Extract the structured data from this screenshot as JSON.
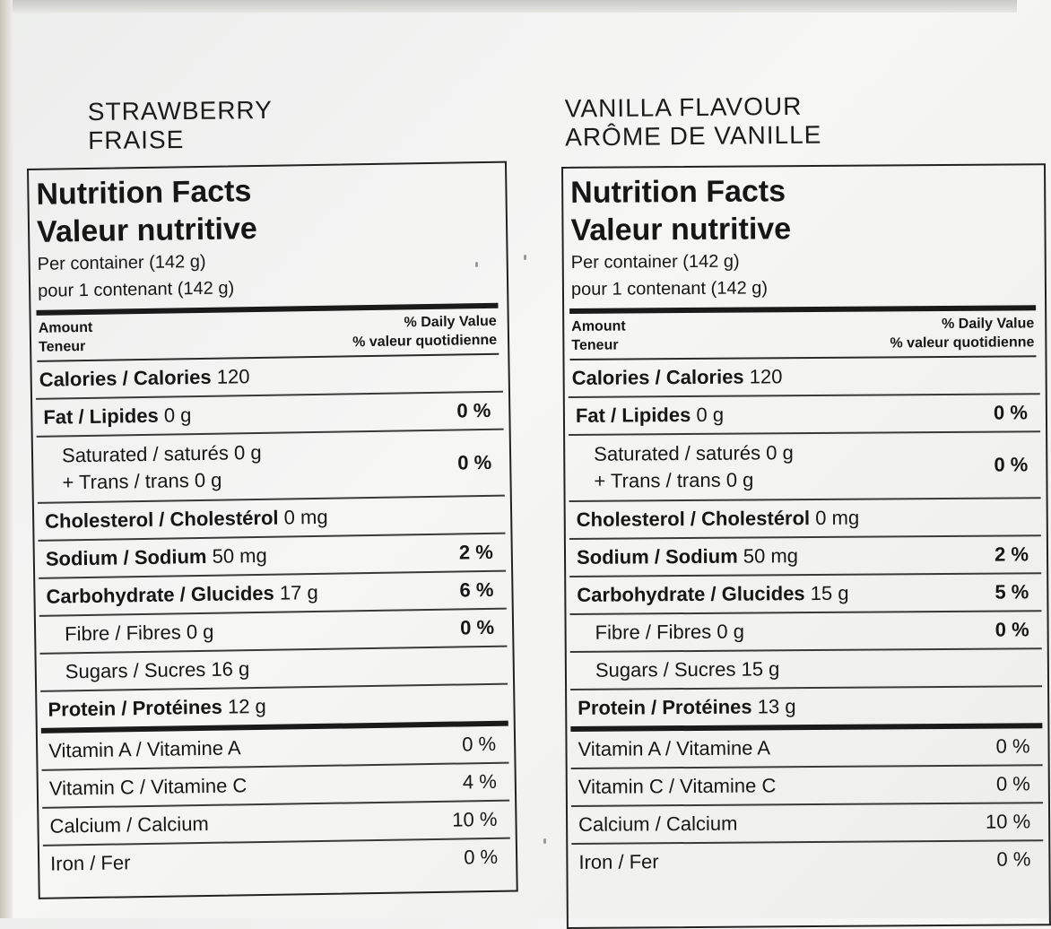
{
  "strawberry": {
    "title_en": "STRAWBERRY",
    "title_fr": "FRAISE",
    "nf_en": "Nutrition Facts",
    "nf_fr": "Valeur nutritive",
    "serving_en": "Per container (142 g)",
    "serving_fr": "pour 1 contenant (142 g)",
    "amount_en": "Amount",
    "amount_fr": "Teneur",
    "dv_en": "% Daily Value",
    "dv_fr": "% valeur quotidienne",
    "calories_label": "Calories / Calories",
    "calories_value": "120",
    "fat_label": "Fat / Lipides",
    "fat_value": "0 g",
    "fat_pct": "0 %",
    "sat_line": "Saturated / saturés 0 g",
    "trans_line": "+ Trans / trans 0 g",
    "sattrans_pct": "0 %",
    "chol_label": "Cholesterol / Cholestérol",
    "chol_value": "0 mg",
    "sodium_label": "Sodium / Sodium",
    "sodium_value": "50 mg",
    "sodium_pct": "2 %",
    "carb_label": "Carbohydrate / Glucides",
    "carb_value": "17 g",
    "carb_pct": "6 %",
    "fibre_line": "Fibre / Fibres 0 g",
    "fibre_pct": "0 %",
    "sugars_line": "Sugars / Sucres 16 g",
    "protein_label": "Protein / Protéines",
    "protein_value": "12 g",
    "vita_label": "Vitamin A / Vitamine A",
    "vita_pct": "0 %",
    "vitc_label": "Vitamin C / Vitamine C",
    "vitc_pct": "4 %",
    "calcium_label": "Calcium / Calcium",
    "calcium_pct": "10 %",
    "iron_label": "Iron / Fer",
    "iron_pct": "0 %"
  },
  "vanilla": {
    "title_en": "VANILLA FLAVOUR",
    "title_fr": "ARÔME DE VANILLE",
    "nf_en": "Nutrition Facts",
    "nf_fr": "Valeur nutritive",
    "serving_en": "Per container (142 g)",
    "serving_fr": "pour 1 contenant (142 g)",
    "amount_en": "Amount",
    "amount_fr": "Teneur",
    "dv_en": "% Daily Value",
    "dv_fr": "% valeur quotidienne",
    "calories_label": "Calories / Calories",
    "calories_value": "120",
    "fat_label": "Fat / Lipides",
    "fat_value": "0 g",
    "fat_pct": "0 %",
    "sat_line": "Saturated / saturés 0 g",
    "trans_line": "+ Trans / trans 0 g",
    "sattrans_pct": "0 %",
    "chol_label": "Cholesterol / Cholestérol",
    "chol_value": "0 mg",
    "sodium_label": "Sodium / Sodium",
    "sodium_value": "50 mg",
    "sodium_pct": "2 %",
    "carb_label": "Carbohydrate / Glucides",
    "carb_value": "15 g",
    "carb_pct": "5 %",
    "fibre_line": "Fibre / Fibres 0 g",
    "fibre_pct": "0 %",
    "sugars_line": "Sugars / Sucres 15 g",
    "protein_label": "Protein / Protéines",
    "protein_value": "13 g",
    "vita_label": "Vitamin A / Vitamine A",
    "vita_pct": "0 %",
    "vitc_label": "Vitamin C / Vitamine C",
    "vitc_pct": "0 %",
    "calcium_label": "Calcium / Calcium",
    "calcium_pct": "10 %",
    "iron_label": "Iron / Fer",
    "iron_pct": "0 %"
  }
}
